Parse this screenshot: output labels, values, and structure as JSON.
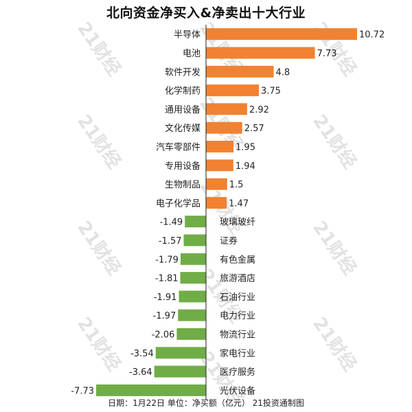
{
  "colors": {
    "positive": "#F08232",
    "negative": "#70AD47",
    "text": "#222222",
    "axis": "#222222",
    "watermark": "#8c8c8c"
  },
  "watermark": "21财经",
  "chart_data": {
    "type": "bar",
    "orientation": "horizontal",
    "title": "北向资金净买入&净卖出十大行业",
    "footer": "日期：1月22日 单位：净买额（亿元） 21投资通制图",
    "unit": "亿元",
    "grid": false,
    "legend": "none",
    "xlim": [
      -7.73,
      10.72
    ],
    "categories": [
      "半导体",
      "电池",
      "软件开发",
      "化学制药",
      "通用设备",
      "文化传媒",
      "汽车零部件",
      "专用设备",
      "生物制品",
      "电子化学品",
      "玻璃玻纤",
      "证券",
      "有色金属",
      "旅游酒店",
      "石油行业",
      "电力行业",
      "物流行业",
      "家电行业",
      "医疗服务",
      "光伏设备"
    ],
    "value_labels": [
      "10.72",
      "7.73",
      "4.8",
      "3.75",
      "2.92",
      "2.57",
      "1.95",
      "1.94",
      "1.5",
      "1.47",
      "-1.49",
      "-1.57",
      "-1.79",
      "-1.81",
      "-1.91",
      "-1.97",
      "-2.06",
      "-3.54",
      "-3.64",
      "-7.73"
    ],
    "values": [
      10.72,
      7.73,
      4.8,
      3.75,
      2.92,
      2.57,
      1.95,
      1.94,
      1.5,
      1.47,
      -1.49,
      -1.57,
      -1.79,
      -1.81,
      -1.91,
      -1.97,
      -2.06,
      -3.54,
      -3.64,
      -7.73
    ]
  }
}
